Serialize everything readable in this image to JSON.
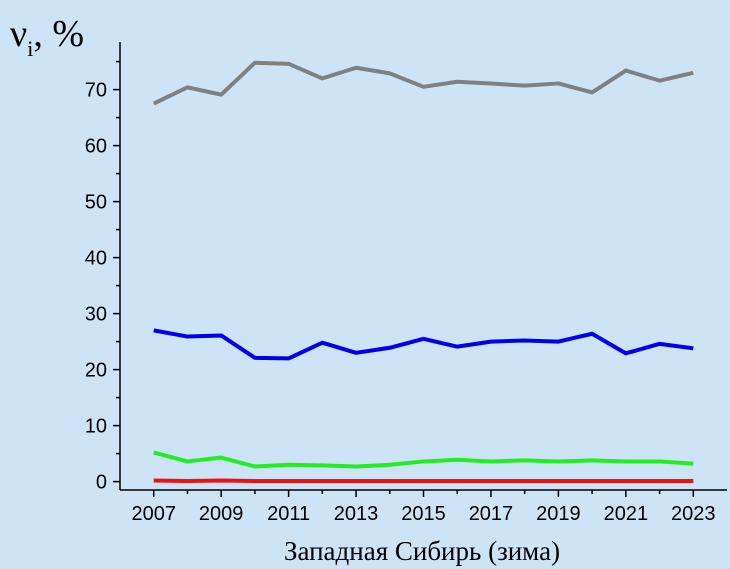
{
  "chart_data": {
    "type": "line",
    "ylabel": {
      "symbol": "ν",
      "subscript": "i",
      "unit": ", %"
    },
    "xlabel": "Западная Сибирь (зима)",
    "x": [
      2007,
      2008,
      2009,
      2010,
      2011,
      2012,
      2013,
      2014,
      2015,
      2016,
      2017,
      2018,
      2019,
      2020,
      2021,
      2022,
      2023
    ],
    "series": [
      {
        "color": "#808080",
        "values": [
          67.5,
          70.4,
          69.1,
          74.8,
          74.6,
          72.0,
          73.9,
          72.9,
          70.5,
          71.4,
          71.1,
          70.7,
          71.1,
          69.5,
          73.4,
          71.6,
          73.0
        ]
      },
      {
        "color": "#0000ee",
        "values": [
          27.0,
          25.9,
          26.1,
          22.1,
          22.0,
          24.8,
          23.0,
          23.9,
          25.5,
          24.1,
          25.0,
          25.2,
          25.0,
          26.4,
          22.9,
          24.6,
          23.8
        ]
      },
      {
        "color": "#22ee22",
        "values": [
          5.2,
          3.6,
          4.3,
          2.7,
          3.0,
          2.9,
          2.7,
          3.0,
          3.6,
          3.9,
          3.6,
          3.8,
          3.6,
          3.8,
          3.6,
          3.6,
          3.2
        ]
      },
      {
        "color": "#ee1111",
        "values": [
          0.2,
          0.1,
          0.2,
          0.1,
          0.1,
          0.1,
          0.1,
          0.1,
          0.1,
          0.1,
          0.1,
          0.1,
          0.1,
          0.1,
          0.1,
          0.1,
          0.1
        ]
      }
    ],
    "xlim": [
      2006,
      2024
    ],
    "ylim": [
      -1.5,
      78.5
    ],
    "xticks": [
      2007,
      2009,
      2011,
      2013,
      2015,
      2017,
      2019,
      2021,
      2023
    ],
    "xminorticks": [
      2008,
      2010,
      2012,
      2014,
      2016,
      2018,
      2020,
      2022
    ],
    "yticks": [
      0,
      10,
      20,
      30,
      40,
      50,
      60,
      70
    ],
    "yminorticks": [
      5,
      15,
      25,
      35,
      45,
      55,
      65,
      75
    ]
  }
}
